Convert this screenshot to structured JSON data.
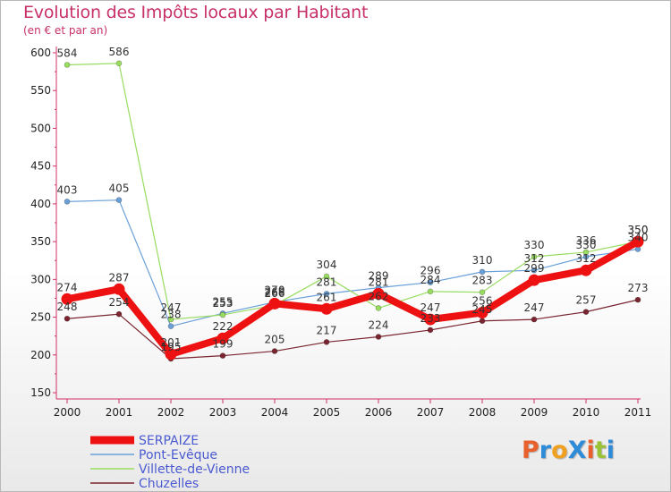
{
  "title": "Evolution des Impôts locaux par Habitant",
  "subtitle": "(en € et par an)",
  "logo": {
    "text": "ProXiti",
    "colors": [
      "#e8612c",
      "#2e8bd8",
      "#f0a020",
      "#2e8bd8",
      "#e8612c",
      "#9ac236",
      "#2e8bd8"
    ]
  },
  "chart_data": {
    "type": "line",
    "categories": [
      "2000",
      "2001",
      "2002",
      "2003",
      "2004",
      "2005",
      "2006",
      "2007",
      "2008",
      "2009",
      "2010",
      "2011"
    ],
    "ylim": [
      150,
      600
    ],
    "yticks": [
      150,
      200,
      250,
      300,
      350,
      400,
      450,
      500,
      550,
      600
    ],
    "grid": false,
    "legend_position": "bottom-left",
    "series": [
      {
        "name": "SERPAIZE",
        "color": "#ee1111",
        "width": 8,
        "values": [
          274,
          287,
          201,
          222,
          268,
          261,
          281,
          247,
          256,
          299,
          312,
          350
        ],
        "labels": [
          "274",
          "287",
          "201",
          "222",
          "268",
          "261",
          "281",
          "247",
          "256",
          "299",
          "312",
          "350"
        ]
      },
      {
        "name": "Pont-Evêque",
        "color": "#6aa0d8",
        "width": 1.2,
        "values": [
          403,
          405,
          238,
          255,
          270,
          281,
          289,
          296,
          310,
          312,
          330,
          340
        ],
        "labels": [
          "403",
          "405",
          "238",
          "255",
          "270",
          "281",
          "289",
          "296",
          "310",
          "312",
          "330",
          "340"
        ]
      },
      {
        "name": "Villette-de-Vienne",
        "color": "#98dc60",
        "width": 1.2,
        "values": [
          584,
          586,
          247,
          253,
          266,
          304,
          262,
          284,
          283,
          330,
          336,
          350
        ],
        "labels": [
          "584",
          "586",
          "247",
          "253",
          "266",
          "304",
          "262",
          "284",
          "283",
          "330",
          "336",
          "350"
        ]
      },
      {
        "name": "Chuzelles",
        "color": "#7a2530",
        "width": 1.2,
        "values": [
          248,
          254,
          195,
          199,
          205,
          217,
          224,
          233,
          245,
          247,
          257,
          273
        ],
        "labels": [
          "248",
          "254",
          "195",
          "199",
          "205",
          "217",
          "224",
          "233",
          "245",
          "247",
          "257",
          "273"
        ]
      }
    ]
  }
}
